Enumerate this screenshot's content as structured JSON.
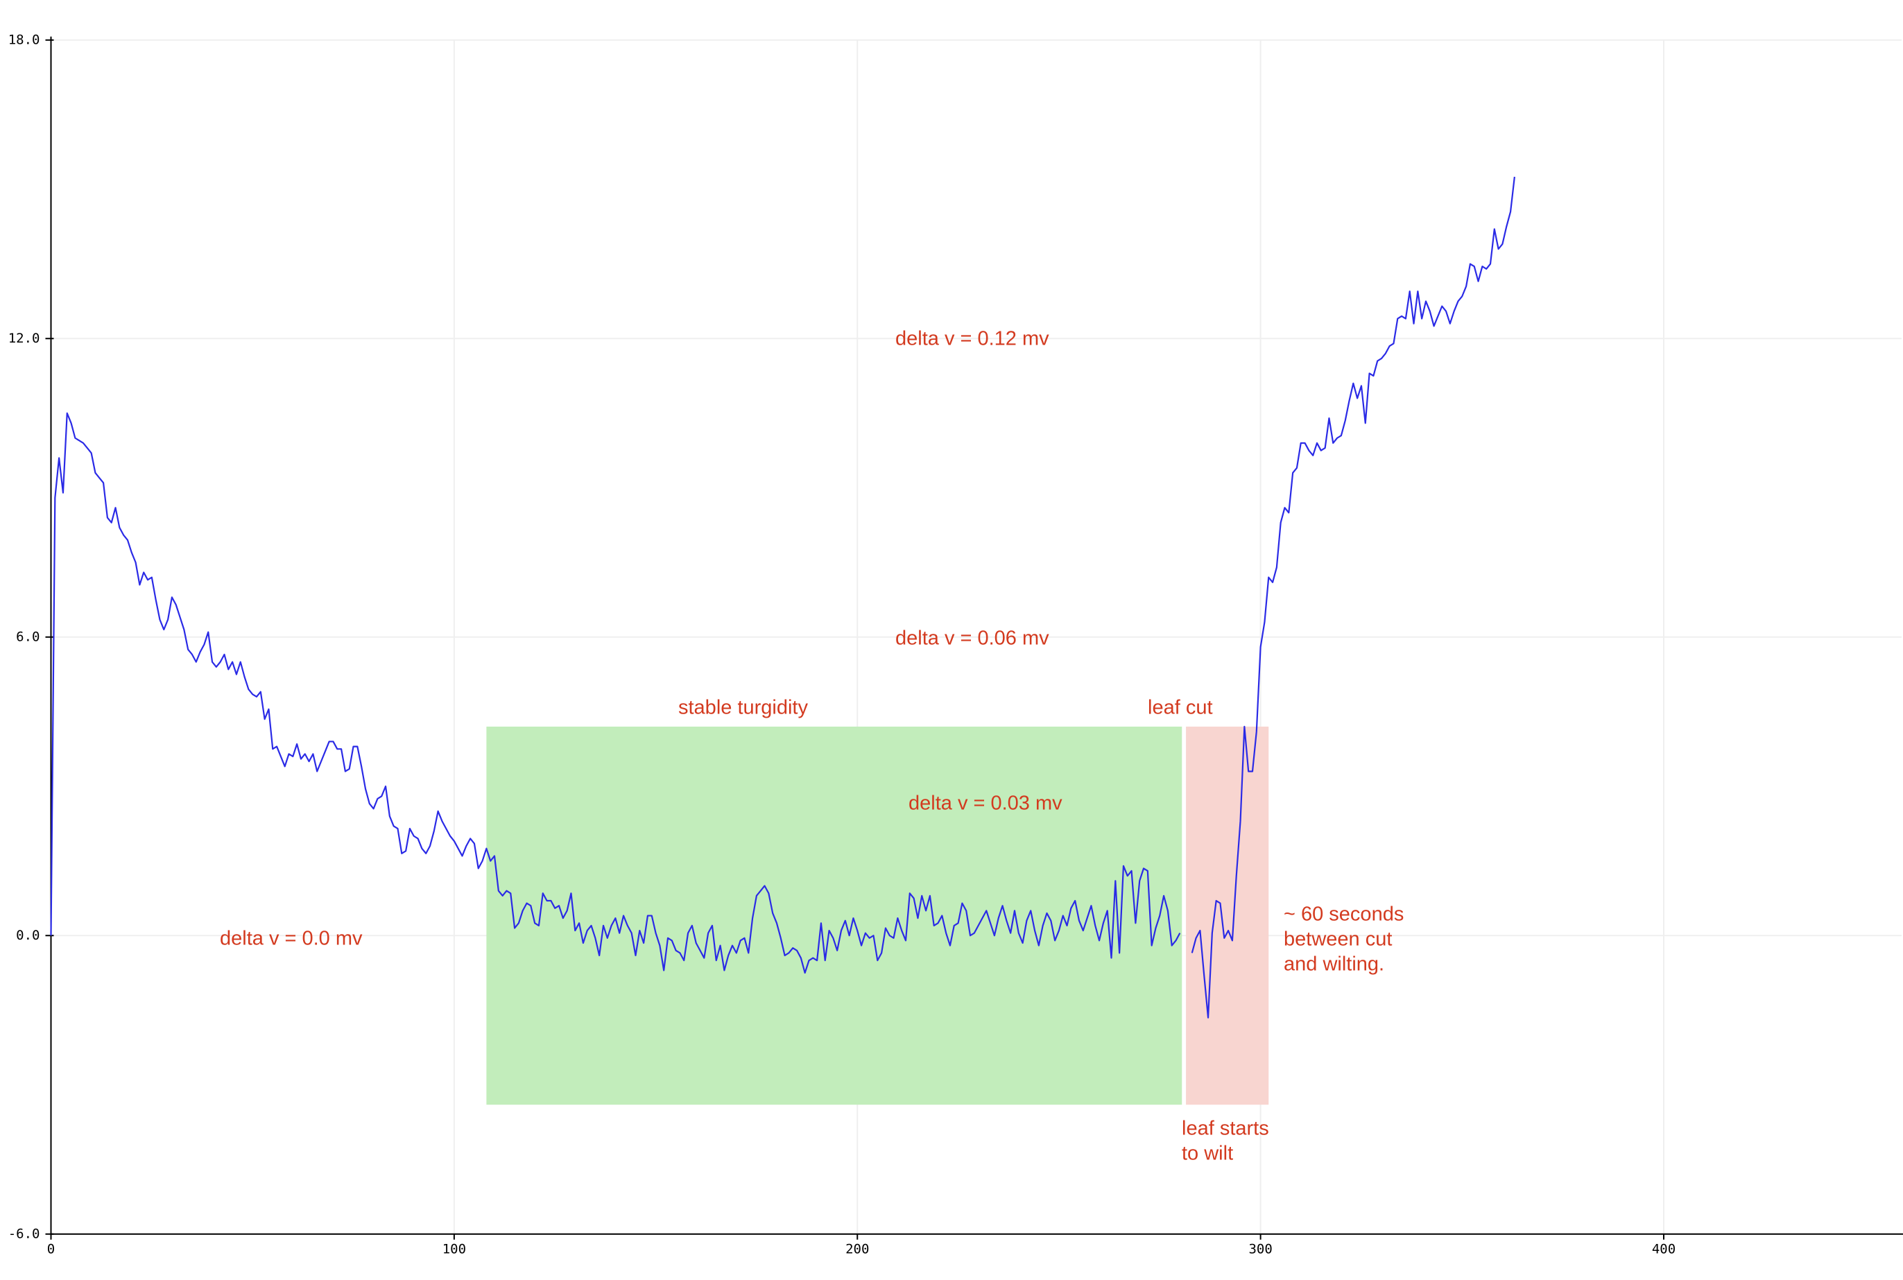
{
  "chart_data": {
    "type": "line",
    "color": "#2a2ae6",
    "grid": true,
    "xlim": [
      0,
      459
    ],
    "ylim": [
      -6,
      18
    ],
    "xticks": [
      0,
      100,
      200,
      300,
      400
    ],
    "yticks": [
      {
        "value": 18,
        "label": "18.0"
      },
      {
        "value": 12,
        "label": "12.0"
      },
      {
        "value": 6,
        "label": "6.0"
      },
      {
        "value": 0,
        "label": "0.0"
      },
      {
        "value": -6,
        "label": "-6.0"
      }
    ],
    "regions": [
      {
        "xlim": [
          108,
          280.5
        ],
        "ylim": [
          -3.4,
          4.2
        ],
        "color": "#c2edbb"
      },
      {
        "xlim": [
          281.5,
          302
        ],
        "ylim": [
          -3.4,
          4.2
        ],
        "color": "#f8d5d0"
      }
    ],
    "annotations": [
      [
        "delta v = 0.12 mv"
      ],
      [
        "delta v = 0.06 mv"
      ],
      [
        "stable turgidity"
      ],
      [
        "leaf cut"
      ],
      [
        "delta v = 0.03 mv"
      ],
      [
        "delta v = 0.0 mv"
      ],
      [
        "~ 60 seconds",
        "between cut",
        "and wilting."
      ],
      [
        "leaf starts",
        "to wilt"
      ]
    ],
    "x": [
      0,
      1,
      2,
      3,
      4,
      5,
      6,
      7,
      8,
      9,
      10,
      11,
      12,
      13,
      14,
      15,
      16,
      17,
      18,
      19,
      20,
      21,
      22,
      23,
      24,
      25,
      26,
      27,
      28,
      29,
      30,
      31,
      32,
      33,
      34,
      35,
      36,
      37,
      38,
      39,
      40,
      41,
      42,
      43,
      44,
      45,
      46,
      47,
      48,
      49,
      50,
      51,
      52,
      53,
      54,
      55,
      56,
      57,
      58,
      59,
      60,
      61,
      62,
      63,
      64,
      65,
      66,
      67,
      68,
      69,
      70,
      71,
      72,
      73,
      74,
      75,
      76,
      77,
      78,
      79,
      80,
      81,
      82,
      83,
      84,
      85,
      86,
      87,
      88,
      89,
      90,
      91,
      92,
      93,
      94,
      95,
      96,
      97,
      98,
      99,
      100,
      101,
      102,
      103,
      104,
      105,
      106,
      107,
      108,
      109,
      110,
      111,
      112,
      113,
      114,
      115,
      116,
      117,
      118,
      119,
      120,
      121,
      122,
      123,
      124,
      125,
      126,
      127,
      128,
      129,
      130,
      131,
      132,
      133,
      134,
      135,
      136,
      137,
      138,
      139,
      140,
      141,
      142,
      143,
      144,
      145,
      146,
      147,
      148,
      149,
      150,
      151,
      152,
      153,
      154,
      155,
      156,
      157,
      158,
      159,
      160,
      161,
      162,
      163,
      164,
      165,
      166,
      167,
      168,
      169,
      170,
      171,
      172,
      173,
      174,
      175,
      176,
      177,
      178,
      179,
      180,
      181,
      182,
      183,
      184,
      185,
      186,
      187,
      188,
      189,
      190,
      191,
      192,
      193,
      194,
      195,
      196,
      197,
      198,
      199,
      200,
      201,
      202,
      203,
      204,
      205,
      206,
      207,
      208,
      209,
      210,
      211,
      212,
      213,
      214,
      215,
      216,
      217,
      218,
      219,
      220,
      221,
      222,
      223,
      224,
      225,
      226,
      227,
      228,
      229,
      230,
      231,
      232,
      233,
      234,
      235,
      236,
      237,
      238,
      239,
      240,
      241,
      242,
      243,
      244,
      245,
      246,
      247,
      248,
      249,
      250,
      251,
      252,
      253,
      254,
      255,
      256,
      257,
      258,
      259,
      260,
      261,
      262,
      263,
      264,
      265,
      266,
      267,
      268,
      269,
      270,
      271,
      272,
      273,
      274,
      275,
      276,
      277,
      278,
      279,
      280,
      281,
      282,
      283,
      284,
      285,
      286,
      287,
      288,
      289,
      290,
      291,
      292,
      293,
      294,
      295,
      296,
      297,
      298,
      299,
      300,
      301,
      302,
      303,
      304,
      305,
      306,
      307,
      308,
      309,
      310,
      311,
      312,
      313,
      314,
      315,
      316,
      317,
      318,
      319,
      320,
      321,
      322,
      323,
      324,
      325,
      326,
      327,
      328,
      329,
      330,
      331,
      332,
      333,
      334,
      335,
      336,
      337,
      338,
      339,
      340,
      341,
      342,
      343,
      344,
      345,
      346,
      347,
      348,
      349,
      350,
      351,
      352,
      353,
      354,
      355,
      356,
      357,
      358,
      359,
      360,
      361,
      362,
      363
    ],
    "values": [
      0.0,
      8.8,
      9.6,
      8.9,
      10.5,
      10.3,
      10.0,
      9.95,
      9.9,
      9.8,
      9.7,
      9.3,
      9.2,
      9.1,
      8.4,
      8.3,
      8.6,
      8.2,
      8.05,
      7.95,
      7.7,
      7.5,
      7.05,
      7.3,
      7.15,
      7.2,
      6.75,
      6.35,
      6.15,
      6.35,
      6.8,
      6.65,
      6.4,
      6.15,
      5.75,
      5.65,
      5.5,
      5.7,
      5.85,
      6.1,
      5.5,
      5.4,
      5.5,
      5.65,
      5.35,
      5.5,
      5.25,
      5.5,
      5.2,
      4.95,
      4.85,
      4.8,
      4.9,
      4.35,
      4.55,
      3.75,
      3.8,
      3.6,
      3.4,
      3.65,
      3.6,
      3.85,
      3.55,
      3.65,
      3.5,
      3.65,
      3.3,
      3.5,
      3.7,
      3.9,
      3.9,
      3.75,
      3.75,
      3.3,
      3.35,
      3.8,
      3.8,
      3.4,
      2.95,
      2.65,
      2.55,
      2.75,
      2.8,
      3.0,
      2.4,
      2.2,
      2.15,
      1.65,
      1.7,
      2.15,
      2.0,
      1.95,
      1.75,
      1.65,
      1.8,
      2.1,
      2.5,
      2.3,
      2.15,
      2.0,
      1.9,
      1.75,
      1.6,
      1.8,
      1.95,
      1.85,
      1.35,
      1.5,
      1.75,
      1.5,
      1.6,
      0.9,
      0.8,
      0.9,
      0.85,
      0.15,
      0.25,
      0.5,
      0.65,
      0.6,
      0.25,
      0.2,
      0.85,
      0.7,
      0.7,
      0.55,
      0.6,
      0.35,
      0.5,
      0.85,
      0.1,
      0.25,
      -0.15,
      0.1,
      0.2,
      -0.05,
      -0.4,
      0.2,
      -0.05,
      0.2,
      0.35,
      0.05,
      0.4,
      0.2,
      0.05,
      -0.4,
      0.1,
      -0.15,
      0.4,
      0.4,
      0.05,
      -0.2,
      -0.7,
      -0.05,
      -0.1,
      -0.3,
      -0.35,
      -0.5,
      0.05,
      0.2,
      -0.15,
      -0.3,
      -0.45,
      0.05,
      0.2,
      -0.5,
      -0.2,
      -0.7,
      -0.4,
      -0.2,
      -0.35,
      -0.1,
      -0.05,
      -0.35,
      0.35,
      0.8,
      0.9,
      1.0,
      0.85,
      0.45,
      0.25,
      -0.05,
      -0.4,
      -0.35,
      -0.25,
      -0.3,
      -0.45,
      -0.75,
      -0.5,
      -0.45,
      -0.5,
      0.25,
      -0.5,
      0.1,
      -0.05,
      -0.3,
      0.1,
      0.3,
      0.0,
      0.35,
      0.1,
      -0.2,
      0.05,
      -0.05,
      0.0,
      -0.5,
      -0.35,
      0.15,
      0.0,
      -0.05,
      0.35,
      0.1,
      -0.1,
      0.85,
      0.75,
      0.35,
      0.8,
      0.5,
      0.8,
      0.2,
      0.25,
      0.4,
      0.05,
      -0.2,
      0.2,
      0.25,
      0.65,
      0.5,
      0.0,
      0.05,
      0.2,
      0.35,
      0.5,
      0.25,
      0.0,
      0.35,
      0.6,
      0.3,
      0.05,
      0.5,
      0.05,
      -0.15,
      0.3,
      0.5,
      0.1,
      -0.2,
      0.2,
      0.45,
      0.3,
      -0.1,
      0.1,
      0.4,
      0.2,
      0.55,
      0.7,
      0.3,
      0.1,
      0.35,
      0.6,
      0.2,
      -0.1,
      0.25,
      0.5,
      -0.45,
      1.1,
      -0.35,
      1.4,
      1.2,
      1.3,
      0.25,
      1.1,
      1.35,
      1.3,
      -0.2,
      0.15,
      0.4,
      0.8,
      0.5,
      -0.2,
      -0.1,
      0.05,
      null,
      null,
      -0.35,
      -0.05,
      0.1,
      -0.8,
      -1.65,
      0.05,
      0.7,
      0.65,
      -0.05,
      0.1,
      -0.1,
      1.2,
      2.3,
      4.2,
      3.3,
      3.3,
      4.1,
      5.8,
      6.3,
      7.2,
      7.1,
      7.4,
      8.3,
      8.6,
      8.5,
      9.3,
      9.4,
      9.9,
      9.9,
      9.75,
      9.65,
      9.9,
      9.75,
      9.8,
      10.4,
      9.9,
      10.0,
      10.05,
      10.35,
      10.75,
      11.1,
      10.8,
      11.05,
      10.3,
      11.3,
      11.25,
      11.55,
      11.6,
      11.7,
      11.85,
      11.9,
      12.4,
      12.45,
      12.4,
      12.95,
      12.3,
      12.95,
      12.4,
      12.75,
      12.55,
      12.25,
      12.45,
      12.65,
      12.55,
      12.3,
      12.55,
      12.75,
      12.85,
      13.05,
      13.5,
      13.45,
      13.15,
      13.45,
      13.4,
      13.5,
      14.2,
      13.8,
      13.9,
      14.25,
      14.55,
      15.25
    ]
  }
}
